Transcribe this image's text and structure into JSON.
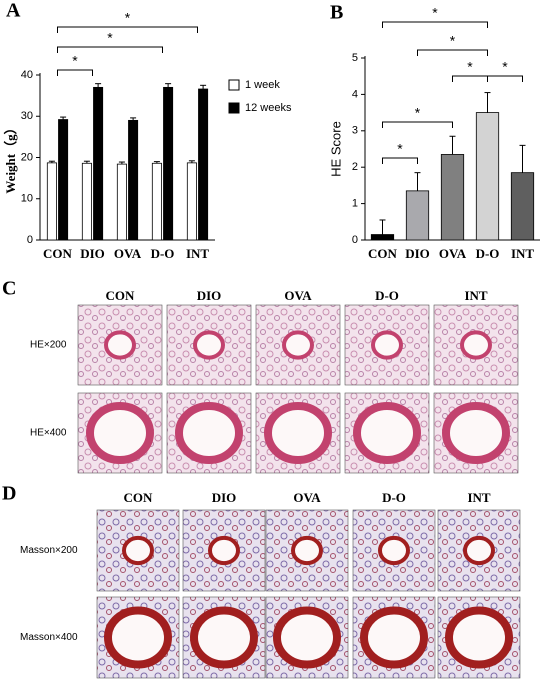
{
  "chart_data": [
    {
      "type": "bar",
      "panel_label": "A",
      "y_label": "Weight（g）",
      "categories": [
        "CON",
        "DIO",
        "OVA",
        "D-O",
        "INT"
      ],
      "series": [
        {
          "name": "1 week",
          "color": "#ffffff",
          "values": [
            18.7,
            18.6,
            18.4,
            18.6,
            18.7
          ],
          "errors": [
            0.4,
            0.5,
            0.5,
            0.4,
            0.5
          ]
        },
        {
          "name": "12 weeks",
          "color": "#000000",
          "values": [
            29.2,
            37,
            29,
            37,
            36.6
          ],
          "errors": [
            0.6,
            0.9,
            0.6,
            0.9,
            0.9
          ]
        }
      ],
      "ylim": [
        0,
        40
      ],
      "yticks": [
        0,
        10,
        20,
        30,
        40
      ],
      "legend": "right",
      "annotations": [
        "*",
        "*",
        "*"
      ]
    },
    {
      "type": "bar",
      "panel_label": "B",
      "y_label": "HE Score",
      "categories": [
        "CON",
        "DIO",
        "OVA",
        "D-O",
        "INT"
      ],
      "values": [
        0.15,
        1.35,
        2.35,
        3.5,
        1.85
      ],
      "errors": [
        0.4,
        0.5,
        0.5,
        0.55,
        0.75
      ],
      "colors": [
        "#000000",
        "#a9a9ad",
        "#808080",
        "#d3d3d3",
        "#5f5f5f"
      ],
      "ylim": [
        0,
        5
      ],
      "yticks": [
        0,
        1,
        2,
        3,
        4,
        5
      ],
      "annotations": [
        "*",
        "*",
        "*",
        "*",
        "*",
        "*"
      ]
    }
  ],
  "panels": [
    {
      "label": "C",
      "columns": [
        "CON",
        "DIO",
        "OVA",
        "D-O",
        "INT"
      ],
      "rows": [
        "HE×200",
        "HE×400"
      ]
    },
    {
      "label": "D",
      "columns": [
        "CON",
        "DIO",
        "OVA",
        "D-O",
        "INT"
      ],
      "rows": [
        "Masson×200",
        "Masson×400"
      ]
    }
  ]
}
